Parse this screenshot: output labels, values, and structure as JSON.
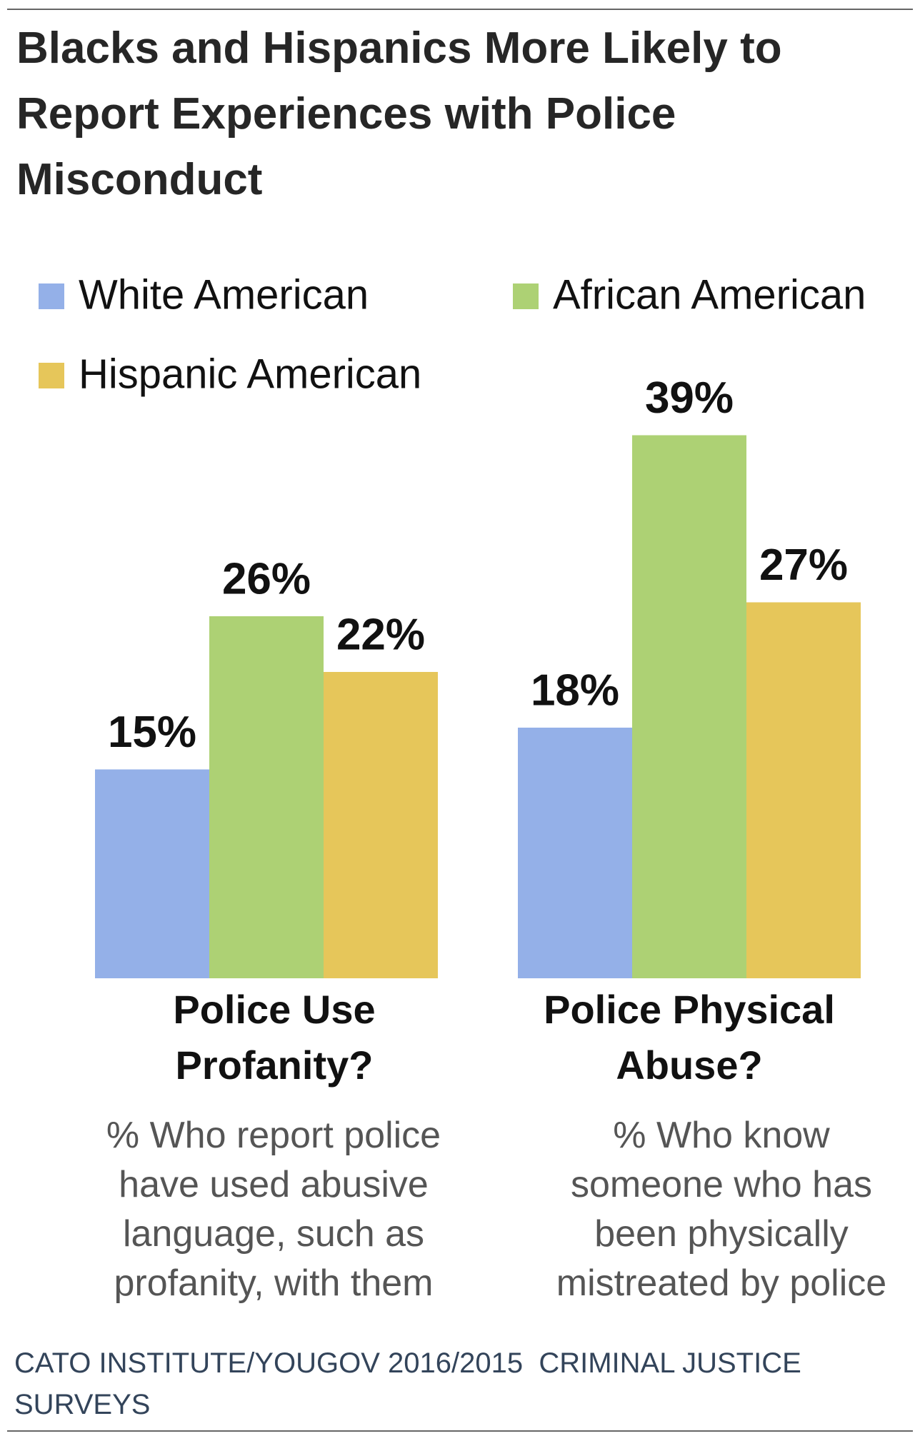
{
  "chart_data": {
    "type": "bar",
    "title": "Blacks and Hispanics More Likely to Report Experiences with Police Misconduct",
    "categories": [
      "Police Use Profanity?",
      "Police Physical Abuse?"
    ],
    "category_descriptions": [
      "% Who report police have used abusive language, such as profanity, with them",
      "% Who know someone who has been physically mistreated by police"
    ],
    "series": [
      {
        "name": "White American",
        "color": "#94b0e8",
        "values": [
          15,
          18
        ],
        "value_labels": [
          "15%",
          "18%"
        ]
      },
      {
        "name": "African American",
        "color": "#add174",
        "values": [
          26,
          39
        ],
        "value_labels": [
          "26%",
          "39%"
        ]
      },
      {
        "name": "Hispanic American",
        "color": "#e6c65a",
        "values": [
          22,
          27
        ],
        "value_labels": [
          "22%",
          "27%"
        ]
      }
    ],
    "source": "CATO INSTITUTE/YOUGOV 2016/2015  CRIMINAL JUSTICE SURVEYS"
  }
}
